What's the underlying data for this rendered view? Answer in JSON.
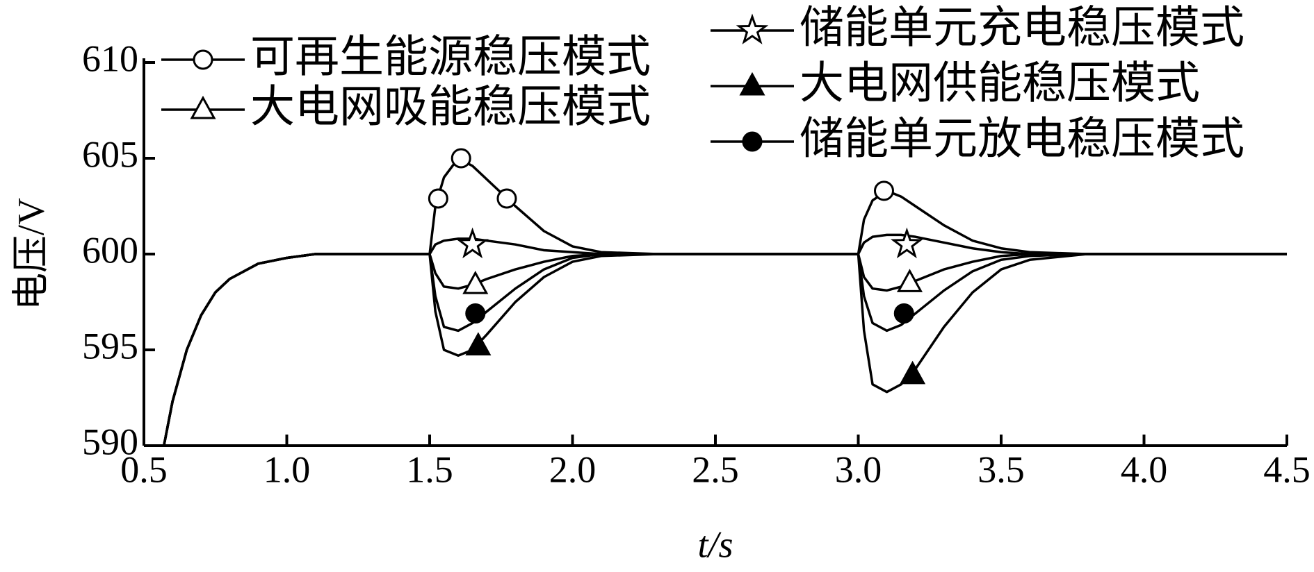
{
  "chart_data": {
    "type": "line",
    "x_label": "t/s",
    "y_label": "电压/V",
    "x": [
      0.57,
      0.6,
      0.65,
      0.7,
      0.75,
      0.8,
      0.9,
      1.0,
      1.1,
      1.2,
      1.5,
      1.52,
      1.55,
      1.6,
      1.65,
      1.7,
      1.8,
      1.9,
      2.0,
      2.1,
      2.3,
      3.0,
      3.02,
      3.05,
      3.1,
      3.15,
      3.2,
      3.3,
      3.4,
      3.5,
      3.6,
      3.8,
      4.5
    ],
    "series": [
      {
        "name": "可再生能源稳压模式",
        "color": "#000000",
        "marker": "circle-open",
        "values": [
          590,
          592.3,
          595,
          596.8,
          598,
          598.7,
          599.5,
          599.8,
          600,
          600,
          600,
          602.5,
          604,
          605,
          604.6,
          603.9,
          602.5,
          601.2,
          600.4,
          600.1,
          600,
          600,
          601.8,
          602.8,
          603.3,
          603,
          602.5,
          601.5,
          600.7,
          600.3,
          600.1,
          600,
          600
        ],
        "points": {
          "x": [
            1.53,
            1.61,
            1.77,
            3.09
          ],
          "y": [
            602.9,
            605,
            602.9,
            603.3
          ]
        }
      },
      {
        "name": "大电网吸能稳压模式",
        "color": "#000000",
        "marker": "triangle-open",
        "values": [
          590,
          592.3,
          595,
          596.8,
          598,
          598.7,
          599.5,
          599.8,
          600,
          600,
          600,
          599,
          598.3,
          598.2,
          598.4,
          598.7,
          599.2,
          599.6,
          599.9,
          600,
          600,
          600,
          598.8,
          598.2,
          598.1,
          598.3,
          598.6,
          599.2,
          599.6,
          599.9,
          600,
          600,
          600
        ],
        "points": {
          "x": [
            1.66,
            3.18
          ],
          "y": [
            598.4,
            598.5
          ]
        }
      },
      {
        "name": "储能单元充电稳压模式",
        "color": "#000000",
        "marker": "star-open",
        "values": [
          590,
          592.3,
          595,
          596.8,
          598,
          598.7,
          599.5,
          599.8,
          600,
          600,
          600,
          600.5,
          600.7,
          600.8,
          600.8,
          600.7,
          600.5,
          600.2,
          600.1,
          600,
          600,
          600,
          600.6,
          600.9,
          601,
          601,
          600.9,
          600.6,
          600.3,
          600.1,
          600,
          600,
          600
        ],
        "points": {
          "x": [
            1.65,
            3.17
          ],
          "y": [
            600.5,
            600.5
          ]
        }
      },
      {
        "name": "大电网供能稳压模式",
        "color": "#000000",
        "marker": "triangle-filled",
        "values": [
          590,
          592.3,
          595,
          596.8,
          598,
          598.7,
          599.5,
          599.8,
          600,
          600,
          600,
          597,
          595,
          594.7,
          595,
          595.8,
          597.5,
          598.8,
          599.6,
          599.9,
          600,
          600,
          596,
          593.2,
          592.8,
          593.2,
          594,
          596.2,
          598,
          599.2,
          599.7,
          600,
          600
        ],
        "points": {
          "x": [
            1.67,
            3.19
          ],
          "y": [
            595.2,
            593.7
          ]
        }
      },
      {
        "name": "储能单元放电稳压模式",
        "color": "#000000",
        "marker": "circle-filled",
        "values": [
          590,
          592.3,
          595,
          596.8,
          598,
          598.7,
          599.5,
          599.8,
          600,
          600,
          600,
          597.8,
          596.2,
          596,
          596.4,
          597,
          598.2,
          599.2,
          599.8,
          600,
          600,
          600,
          597.8,
          596.4,
          596,
          596.3,
          596.9,
          598.1,
          599.1,
          599.7,
          599.9,
          600,
          600
        ],
        "points": {
          "x": [
            1.66,
            3.16
          ],
          "y": [
            596.9,
            596.9
          ]
        }
      }
    ],
    "xlim": [
      0.5,
      4.5
    ],
    "xticks": [
      {
        "value": 0.5,
        "label": "0.5"
      },
      {
        "value": 1,
        "label": "1.0"
      },
      {
        "value": 1.5,
        "label": "1.5"
      },
      {
        "value": 2,
        "label": "2.0"
      },
      {
        "value": 2.5,
        "label": "2.5"
      },
      {
        "value": 3,
        "label": "3.0"
      },
      {
        "value": 3.5,
        "label": "3.5"
      },
      {
        "value": 4,
        "label": "4.0"
      },
      {
        "value": 4.5,
        "label": "4.5"
      }
    ],
    "ylim": [
      590,
      610
    ],
    "yticks": [
      590,
      595,
      600,
      605,
      610
    ]
  }
}
